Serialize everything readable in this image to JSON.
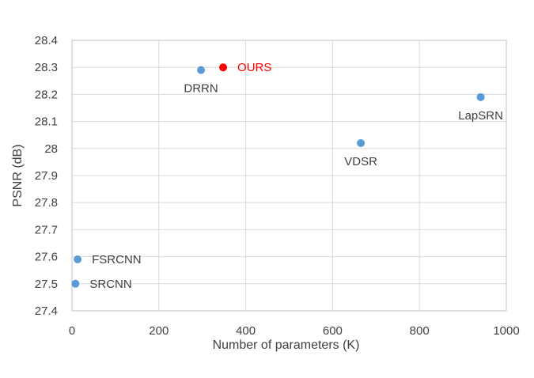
{
  "chart_data": {
    "type": "scatter",
    "title": "",
    "xlabel": "Number of parameters (K)",
    "ylabel": "PSNR (dB)",
    "xlim": [
      0,
      1000
    ],
    "ylim": [
      27.4,
      28.4
    ],
    "xticks": [
      0,
      200,
      400,
      600,
      800,
      1000
    ],
    "yticks": [
      27.4,
      27.5,
      27.6,
      27.7,
      27.8,
      27.9,
      28,
      28.1,
      28.2,
      28.3,
      28.4
    ],
    "grid": true,
    "legend": "none",
    "points": [
      {
        "label": "SRCNN",
        "x": 8,
        "y": 27.5,
        "color": "#5b9bd5",
        "label_side": "right"
      },
      {
        "label": "FSRCNN",
        "x": 13,
        "y": 27.59,
        "color": "#5b9bd5",
        "label_side": "right"
      },
      {
        "label": "DRRN",
        "x": 297,
        "y": 28.29,
        "color": "#5b9bd5",
        "label_side": "below"
      },
      {
        "label": "OURS",
        "x": 348,
        "y": 28.3,
        "color": "#ff0000",
        "label_side": "right"
      },
      {
        "label": "VDSR",
        "x": 665,
        "y": 28.02,
        "color": "#5b9bd5",
        "label_side": "below"
      },
      {
        "label": "LapSRN",
        "x": 941,
        "y": 28.19,
        "color": "#5b9bd5",
        "label_side": "below"
      }
    ]
  },
  "colors": {
    "default_point": "#5b9bd5",
    "highlight_point": "#ff0000",
    "grid": "#d9d9d9",
    "axis_text": "#404040",
    "label_text": "#404040"
  }
}
